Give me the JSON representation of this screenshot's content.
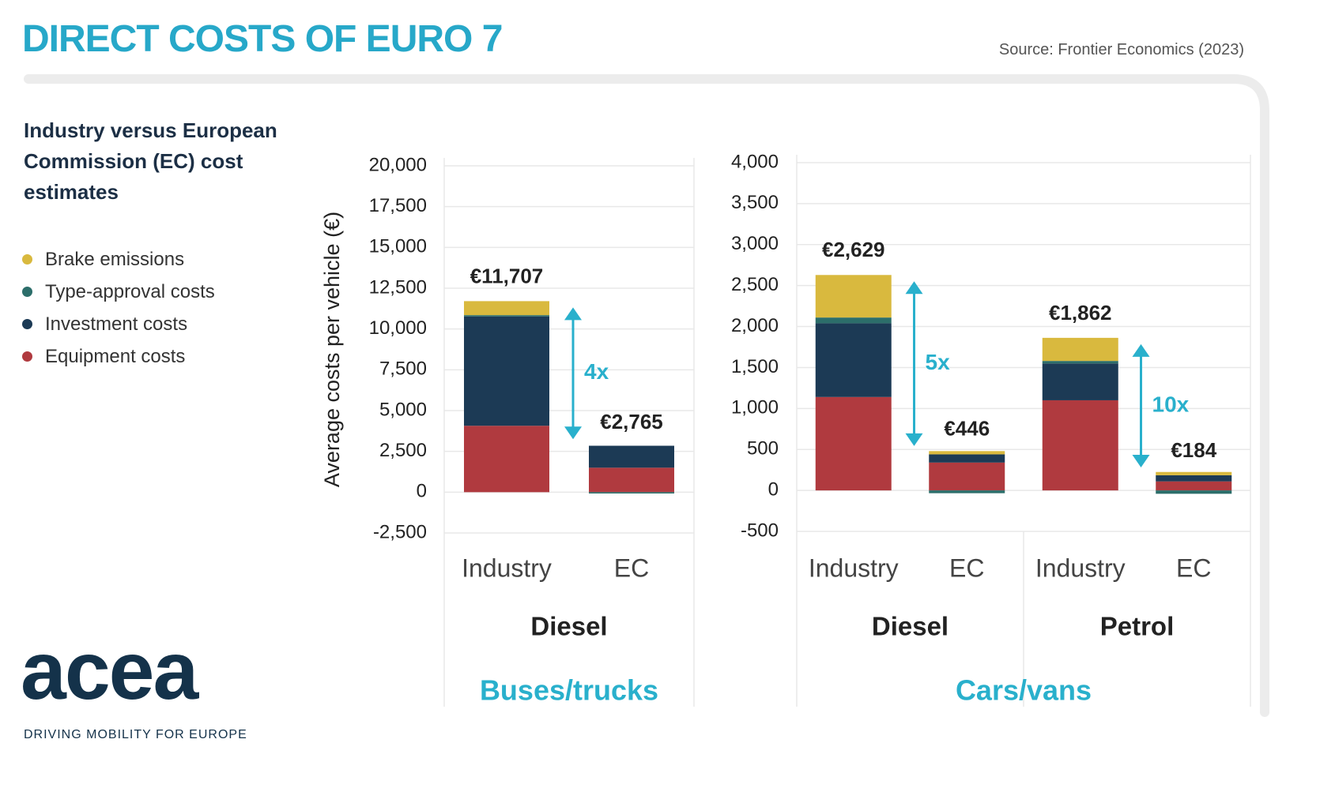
{
  "title": "DIRECT COSTS OF EURO 7",
  "source": "Source: Frontier Economics (2023)",
  "subtitle": "Industry versus European Commission (EC) cost estimates",
  "logo": {
    "name": "acea",
    "tagline": "DRIVING MOBILITY FOR EUROPE"
  },
  "chart_data": [
    {
      "type": "stacked_bar",
      "ylabel": "Average costs per vehicle (€)",
      "section": "Buses/trucks",
      "groups": [
        "Diesel"
      ],
      "categories": [
        "Industry",
        "EC"
      ],
      "series": [
        {
          "name": "Equipment costs",
          "color": "#b03a3f",
          "values": [
            4070,
            1500
          ]
        },
        {
          "name": "Investment costs",
          "color": "#1c3a55",
          "values": [
            6700,
            1345
          ]
        },
        {
          "name": "Type-approval costs",
          "color": "#2c6e6a",
          "values": [
            80,
            -80
          ]
        },
        {
          "name": "Brake emissions",
          "color": "#d9b93e",
          "values": [
            857,
            0
          ]
        }
      ],
      "totals": [
        11707,
        2765
      ],
      "total_labels": [
        "€11,707",
        "€2,765"
      ],
      "ratio_labels": [
        "4x"
      ],
      "ylim": [
        -2500,
        20000
      ],
      "yticks": [
        {
          "value": 20000,
          "label": "20,000"
        },
        {
          "value": 17500,
          "label": "17,500"
        },
        {
          "value": 15000,
          "label": "15,000"
        },
        {
          "value": 12500,
          "label": "12,500"
        },
        {
          "value": 10000,
          "label": "10,000"
        },
        {
          "value": 7500,
          "label": "7,500"
        },
        {
          "value": 5000,
          "label": "5,000"
        },
        {
          "value": 2500,
          "label": "2,500"
        },
        0,
        {
          "value": -2500,
          "label": "-2,500"
        }
      ],
      "grid": true
    },
    {
      "type": "stacked_bar",
      "section": "Cars/vans",
      "groups": [
        "Diesel",
        "Petrol"
      ],
      "categories": [
        "Industry",
        "EC",
        "Industry",
        "EC"
      ],
      "series": [
        {
          "name": "Equipment costs",
          "color": "#b03a3f",
          "values": [
            1140,
            340,
            1100,
            110
          ]
        },
        {
          "name": "Investment costs",
          "color": "#1c3a55",
          "values": [
            900,
            100,
            450,
            75
          ]
        },
        {
          "name": "Type-approval costs",
          "color": "#2c6e6a",
          "values": [
            70,
            -34,
            30,
            -41
          ]
        },
        {
          "name": "Brake emissions",
          "color": "#d9b93e",
          "values": [
            519,
            40,
            282,
            40
          ]
        }
      ],
      "totals": [
        2629,
        446,
        1862,
        184
      ],
      "total_labels": [
        "€2,629",
        "€446",
        "€1,862",
        "€184"
      ],
      "ratio_labels": [
        "5x",
        "10x"
      ],
      "ylim": [
        -500,
        4000
      ],
      "yticks": [
        {
          "value": 4000,
          "label": "4,000"
        },
        {
          "value": 3500,
          "label": "3,500"
        },
        {
          "value": 3000,
          "label": "3,000"
        },
        {
          "value": 2500,
          "label": "2,500"
        },
        {
          "value": 2000,
          "label": "2,000"
        },
        {
          "value": 1500,
          "label": "1,500"
        },
        {
          "value": 1000,
          "label": "1,000"
        },
        500,
        0,
        -500
      ],
      "grid": true
    }
  ]
}
